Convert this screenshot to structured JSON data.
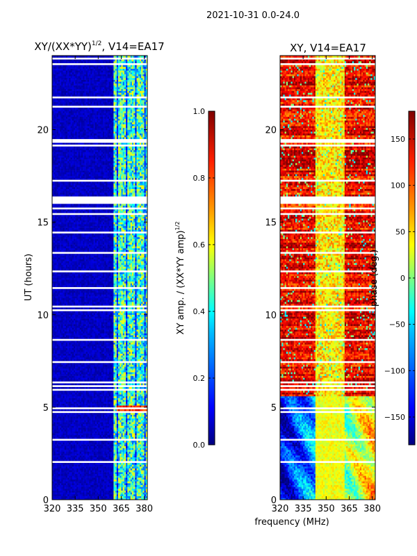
{
  "figure": {
    "suptitle": "2021-10-31 0.0-24.0",
    "xlabel": "frequency (MHz)"
  },
  "colors": {
    "jet": [
      "#00007f",
      "#0000ff",
      "#007fff",
      "#00ffff",
      "#7fff7f",
      "#ffff00",
      "#ff7f00",
      "#ff0000",
      "#7f0000"
    ],
    "gap": "#ffffff",
    "axis": "#000000"
  },
  "chart_data": [
    {
      "type": "heatmap",
      "title_main": "XY/(XX*YY)",
      "title_sup": "1/2",
      "title_tail": ", V14=EA17",
      "xlabel": "",
      "ylabel": "UT (hours)",
      "xlim": [
        320,
        382
      ],
      "ylim": [
        0,
        24
      ],
      "xticks": [
        320,
        335,
        350,
        365,
        380
      ],
      "yticks": [
        0,
        5,
        10,
        15,
        20
      ],
      "value_range": [
        0.0,
        1.0
      ],
      "colorbar": {
        "label_main": "XY amp. / (XX*YY amp)",
        "label_sup": "1/2",
        "range": [
          0.0,
          1.0
        ],
        "ticks": [
          "0.0",
          "0.2",
          "0.4",
          "0.6",
          "0.8",
          "1.0"
        ]
      },
      "description": "Low normalized amplitude (~0.0-0.1) at 320-360 MHz; patchy higher values (~0.3-0.6) in channels 361-380 MHz; bright band near UT 4.9-5.0"
    },
    {
      "type": "heatmap",
      "title": "XY, V14=EA17",
      "xlabel": "",
      "ylabel": "",
      "xlim": [
        320,
        382
      ],
      "ylim": [
        0,
        24
      ],
      "xticks": [
        320,
        335,
        350,
        365,
        380
      ],
      "yticks": [
        0,
        5,
        10,
        15,
        20
      ],
      "value_range": [
        -180,
        180
      ],
      "colorbar": {
        "label": "phase (deg.)",
        "range": [
          -180,
          180
        ],
        "ticks": [
          "150",
          "100",
          "50",
          "0",
          "−50",
          "−100",
          "−150"
        ]
      },
      "description": "Phase mostly 100-180 deg above UT ~6 with ~50 deg band near 345-360 MHz; below UT ~5.5 phase varies -150 to +50 deg across frequency"
    }
  ]
}
